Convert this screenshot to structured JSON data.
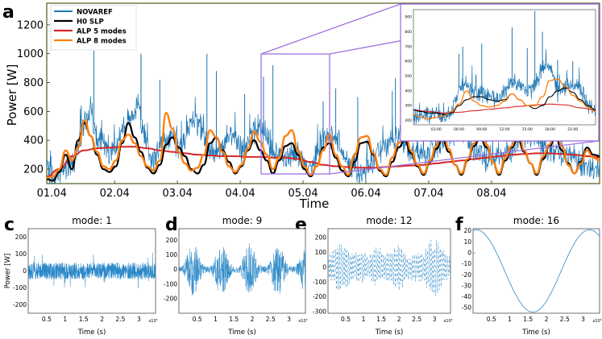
{
  "panel_labels": {
    "a": "a",
    "c": "c",
    "d": "d",
    "e": "e",
    "f": "f"
  },
  "colors": {
    "novaref": "#1f77b4",
    "h0slp": "#000000",
    "alp5": "#d62728",
    "alp8": "#ff7f0e",
    "frame": "#4d5a1a",
    "zoom": "#a070e0",
    "mode": "#2a88c8"
  },
  "chart_data": [
    {
      "type": "line",
      "id": "a",
      "xlabel": "Time",
      "ylabel": "Power [W]",
      "ylim": [
        100,
        1350
      ],
      "xlim": [
        0,
        8.8
      ],
      "x_ticks": [
        "01.04",
        "02.04",
        "03.04",
        "04.04",
        "05.04",
        "06.04",
        "07.04",
        "08.04"
      ],
      "y_ticks": [
        200,
        400,
        600,
        800,
        1000,
        1200
      ],
      "legend_placement": "top-left",
      "series": [
        {
          "name": "NOVAREF",
          "color": "#1f77b4",
          "profile": {
            "x": [
              0,
              0.15,
              0.3,
              0.45,
              0.55,
              0.7,
              0.8,
              0.9,
              1.0,
              1.15,
              1.3,
              1.45,
              1.6,
              1.7,
              1.85,
              2.0,
              2.15,
              2.3,
              2.45,
              2.6,
              2.75,
              2.9,
              3.0,
              3.15,
              3.3,
              3.45,
              3.6,
              3.75,
              3.9,
              4.0,
              4.2,
              4.4,
              4.6,
              4.8,
              5.0,
              5.2,
              5.4,
              5.6,
              5.8,
              6.0,
              6.2,
              6.4,
              6.6,
              6.8,
              7.0,
              7.2,
              7.4,
              7.6,
              7.8,
              8.0,
              8.2,
              8.4,
              8.6,
              8.8
            ],
            "y": [
              180,
              150,
              200,
              280,
              460,
              600,
              420,
              350,
              300,
              420,
              540,
              640,
              340,
              260,
              390,
              420,
              330,
              560,
              480,
              330,
              300,
              450,
              400,
              300,
              480,
              470,
              330,
              280,
              310,
              300,
              200,
              420,
              400,
              260,
              150,
              280,
              380,
              420,
              320,
              320,
              340,
              450,
              480,
              330,
              280,
              300,
              330,
              440,
              420,
              300,
              300,
              300,
              200,
              180
            ]
          },
          "peaks": [
            [
              0.55,
              640
            ],
            [
              0.75,
              1020
            ],
            [
              1.5,
              990
            ],
            [
              1.5,
              1000
            ],
            [
              1.8,
              820
            ],
            [
              2.55,
              1000
            ],
            [
              2.7,
              880
            ],
            [
              3.15,
              720
            ],
            [
              3.6,
              920
            ],
            [
              3.45,
              840
            ],
            [
              4.4,
              670
            ],
            [
              4.6,
              760
            ],
            [
              4.95,
              700
            ],
            [
              5.55,
              830
            ],
            [
              5.5,
              740
            ],
            [
              6.3,
              570
            ],
            [
              6.7,
              520
            ],
            [
              7.0,
              600
            ],
            [
              7.65,
              870
            ],
            [
              7.5,
              740
            ],
            [
              8.2,
              560
            ]
          ]
        },
        {
          "name": "H0 SLP",
          "color": "#000000",
          "x": [
            0,
            0.1,
            0.2,
            0.3,
            0.4,
            0.5,
            0.6,
            0.7,
            0.8,
            0.9,
            1.0,
            1.1,
            1.2,
            1.3,
            1.4,
            1.5,
            1.6,
            1.7,
            1.8,
            1.9,
            2.0,
            2.1,
            2.2,
            2.3,
            2.4,
            2.5,
            2.6,
            2.7,
            2.8,
            2.9,
            3.0,
            3.1,
            3.2,
            3.3,
            3.4,
            3.5,
            3.6,
            3.7,
            3.8,
            3.9,
            4.0,
            4.1,
            4.2,
            4.3,
            4.4,
            4.5,
            4.6,
            4.7,
            4.8,
            4.9,
            5.0,
            5.1,
            5.2,
            5.3,
            5.4,
            5.5,
            5.6,
            5.7,
            5.8,
            5.9,
            6.0,
            6.1,
            6.2,
            6.3,
            6.4,
            6.5,
            6.6,
            6.7,
            6.8,
            6.9,
            7.0,
            7.1,
            7.2,
            7.3,
            7.4,
            7.5,
            7.6,
            7.7,
            7.8,
            7.9,
            8.0,
            8.1,
            8.2,
            8.3,
            8.4,
            8.5,
            8.6,
            8.7,
            8.8
          ],
          "y": [
            130,
            120,
            180,
            300,
            200,
            400,
            520,
            430,
            300,
            200,
            180,
            220,
            380,
            520,
            420,
            320,
            210,
            170,
            230,
            370,
            420,
            350,
            290,
            200,
            170,
            230,
            380,
            420,
            330,
            250,
            170,
            220,
            330,
            400,
            330,
            260,
            170,
            260,
            360,
            380,
            300,
            200,
            150,
            220,
            350,
            380,
            280,
            190,
            150,
            250,
            380,
            390,
            300,
            190,
            150,
            250,
            350,
            400,
            310,
            220,
            160,
            250,
            340,
            410,
            320,
            230,
            160,
            260,
            360,
            420,
            350,
            250,
            160,
            260,
            350,
            410,
            320,
            240,
            160,
            270,
            360,
            420,
            330,
            240,
            170,
            250,
            350,
            300,
            290
          ]
        },
        {
          "name": "ALP 5 modes",
          "color": "#d62728",
          "x": [
            0,
            0.2,
            0.4,
            0.6,
            0.8,
            1.0,
            1.2,
            1.4,
            1.6,
            1.8,
            2.0,
            2.2,
            2.4,
            2.6,
            2.8,
            3.0,
            3.2,
            3.4,
            3.6,
            3.8,
            4.0,
            4.2,
            4.4,
            4.6,
            4.8,
            5.0,
            5.2,
            5.4,
            5.6,
            5.8,
            6.0,
            6.2,
            6.4,
            6.6,
            6.8,
            7.0,
            7.2,
            7.4,
            7.6,
            7.8,
            8.0,
            8.2,
            8.4,
            8.6,
            8.8
          ],
          "y": [
            150,
            200,
            290,
            330,
            345,
            350,
            355,
            355,
            345,
            330,
            320,
            310,
            300,
            295,
            290,
            290,
            285,
            285,
            280,
            280,
            270,
            250,
            230,
            220,
            215,
            210,
            210,
            215,
            220,
            225,
            230,
            240,
            250,
            260,
            270,
            280,
            290,
            300,
            305,
            310,
            310,
            305,
            300,
            290,
            280
          ]
        },
        {
          "name": "ALP 8 modes",
          "color": "#ff7f0e",
          "x": [
            0,
            0.1,
            0.2,
            0.3,
            0.4,
            0.5,
            0.6,
            0.7,
            0.8,
            0.9,
            1.0,
            1.1,
            1.2,
            1.3,
            1.4,
            1.5,
            1.6,
            1.7,
            1.8,
            1.9,
            2.0,
            2.1,
            2.2,
            2.3,
            2.4,
            2.5,
            2.6,
            2.7,
            2.8,
            2.9,
            3.0,
            3.1,
            3.2,
            3.3,
            3.4,
            3.5,
            3.6,
            3.7,
            3.8,
            3.9,
            4.0,
            4.1,
            4.2,
            4.3,
            4.4,
            4.5,
            4.6,
            4.7,
            4.8,
            4.9,
            5.0,
            5.1,
            5.2,
            5.3,
            5.4,
            5.5,
            5.6,
            5.7,
            5.8,
            5.9,
            6.0,
            6.1,
            6.2,
            6.3,
            6.4,
            6.5,
            6.6,
            6.7,
            6.8,
            6.9,
            7.0,
            7.1,
            7.2,
            7.3,
            7.4,
            7.5,
            7.6,
            7.7,
            7.8,
            7.9,
            8.0,
            8.1,
            8.2,
            8.3,
            8.4,
            8.5,
            8.6,
            8.7,
            8.8
          ],
          "y": [
            140,
            150,
            200,
            330,
            260,
            350,
            540,
            430,
            320,
            220,
            200,
            260,
            400,
            440,
            380,
            290,
            220,
            190,
            260,
            590,
            480,
            320,
            240,
            190,
            210,
            300,
            470,
            420,
            320,
            220,
            180,
            230,
            340,
            460,
            390,
            300,
            200,
            280,
            430,
            470,
            330,
            220,
            160,
            220,
            330,
            440,
            300,
            220,
            160,
            300,
            420,
            430,
            310,
            200,
            160,
            280,
            380,
            480,
            330,
            230,
            170,
            260,
            360,
            500,
            340,
            230,
            170,
            270,
            380,
            500,
            370,
            250,
            170,
            280,
            360,
            520,
            330,
            240,
            170,
            290,
            370,
            520,
            360,
            230,
            170,
            240,
            330,
            280,
            260
          ]
        }
      ],
      "inset": {
        "type": "line",
        "x_ticks": [
          "03:00",
          "06:00",
          "09:00",
          "12:00",
          "15:00",
          "18:00",
          "21:00"
        ],
        "y_ticks": [
          200,
          300,
          400,
          500,
          600,
          700,
          800,
          900
        ],
        "xlim": [
          0,
          24
        ],
        "ylim": [
          170,
          950
        ],
        "series": [
          {
            "name": "NOVAREF",
            "color": "#1f77b4",
            "profile": {
              "x": [
                0,
                1,
                2,
                3,
                4,
                5,
                6,
                7,
                8,
                9,
                10,
                11,
                12,
                13,
                14,
                15,
                16,
                17,
                18,
                19,
                20,
                21,
                22,
                23,
                24
              ],
              "y": [
                230,
                230,
                240,
                240,
                220,
                250,
                420,
                430,
                400,
                380,
                360,
                350,
                400,
                460,
                460,
                380,
                430,
                560,
                580,
                380,
                420,
                450,
                420,
                300,
                260
              ]
            },
            "peaks": [
              [
                6,
                650
              ],
              [
                6.5,
                700
              ],
              [
                9,
                720
              ],
              [
                13,
                830
              ],
              [
                15,
                690
              ],
              [
                16,
                940
              ],
              [
                17,
                800
              ],
              [
                19,
                610
              ],
              [
                21,
                600
              ]
            ]
          },
          {
            "name": "H0 SLP",
            "color": "#000000",
            "x": [
              0,
              1,
              2,
              3,
              4,
              5,
              6,
              7,
              8,
              9,
              10,
              11,
              12,
              13,
              14,
              15,
              16,
              17,
              18,
              19,
              20,
              21,
              22,
              23,
              24
            ],
            "y": [
              270,
              260,
              250,
              250,
              240,
              250,
              300,
              340,
              360,
              360,
              340,
              330,
              340,
              380,
              340,
              300,
              280,
              300,
              360,
              400,
              420,
              390,
              340,
              300,
              270
            ]
          },
          {
            "name": "ALP 5 modes",
            "color": "#d62728",
            "x": [
              0,
              2,
              4,
              6,
              8,
              10,
              12,
              14,
              16,
              18,
              20,
              22,
              24
            ],
            "y": [
              270,
              260,
              250,
              255,
              265,
              275,
              285,
              295,
              305,
              310,
              305,
              285,
              270
            ]
          },
          {
            "name": "ALP 8 modes",
            "color": "#ff7f0e",
            "x": [
              0,
              1,
              2,
              3,
              4,
              5,
              6,
              7,
              8,
              9,
              10,
              11,
              12,
              13,
              14,
              15,
              16,
              17,
              18,
              19,
              20,
              21,
              22,
              23,
              24
            ],
            "y": [
              240,
              220,
              210,
              220,
              230,
              260,
              310,
              400,
              330,
              300,
              290,
              300,
              330,
              380,
              340,
              300,
              300,
              360,
              470,
              480,
              430,
              370,
              330,
              290,
              260
            ]
          }
        ]
      }
    },
    {
      "type": "line",
      "id": "c",
      "title": "mode: 1",
      "xlabel": "Time (s)",
      "ylabel": "Power [W]",
      "ylim": [
        -250,
        250
      ],
      "y_ticks": [
        -200,
        -100,
        0,
        100,
        200
      ],
      "x_ticks": [
        "0.5",
        "1",
        "1.5",
        "2",
        "2.5",
        "3"
      ],
      "x_exp": "x10⁵",
      "series": [
        {
          "name": "",
          "color": "#2a88c8",
          "shape": "noise",
          "amplitude": 50,
          "burst": 120
        }
      ]
    },
    {
      "type": "line",
      "id": "d",
      "title": "mode: 9",
      "xlabel": "Time (s)",
      "ylim": [
        -300,
        280
      ],
      "y_ticks": [
        -200,
        -100,
        0,
        100,
        200
      ],
      "x_ticks": [
        "0.5",
        "1",
        "1.5",
        "2",
        "2.5",
        "3"
      ],
      "x_exp": "x10⁵",
      "series": [
        {
          "name": "",
          "color": "#2a88c8",
          "shape": "bursty",
          "amplitude": 180
        }
      ]
    },
    {
      "type": "line",
      "id": "e",
      "title": "mode: 12",
      "xlabel": "Time (s)",
      "ylim": [
        -310,
        260
      ],
      "y_ticks": [
        -300,
        -200,
        -100,
        0,
        100,
        200
      ],
      "x_ticks": [
        "0.5",
        "1",
        "1.5",
        "2",
        "2.5",
        "3"
      ],
      "x_exp": "x10⁵",
      "series": [
        {
          "name": "",
          "color": "#2a88c8",
          "shape": "dashed-oscillation",
          "amplitude": 220
        }
      ]
    },
    {
      "type": "line",
      "id": "f",
      "title": "mode: 16",
      "xlabel": "Time (s)",
      "ylim": [
        -55,
        22
      ],
      "y_ticks": [
        -50,
        -40,
        -30,
        -20,
        -10,
        0,
        10,
        20
      ],
      "x_ticks": [
        "0.5",
        "1",
        "1.5",
        "2",
        "2.5",
        "3"
      ],
      "x_exp": "x10⁵",
      "series": [
        {
          "name": "",
          "color": "#2a88c8",
          "shape": "sine",
          "amplitude": 37.5,
          "offset": -16.5
        }
      ]
    }
  ]
}
